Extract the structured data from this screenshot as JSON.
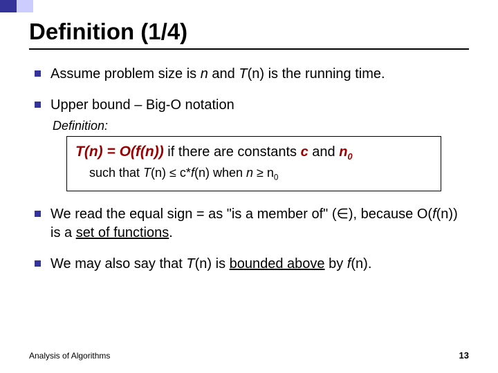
{
  "accent": {
    "dark": "#333399",
    "light": "#ccccff"
  },
  "title": "Definition (1/4)",
  "bullets": {
    "b1_pre": "Assume problem size is ",
    "b1_n": "n",
    "b1_mid": " and ",
    "b1_tn": "T",
    "b1_tn2": "(n)",
    "b1_post": " is the running time.",
    "b2": "Upper bound – Big-O notation",
    "b3_pre": "We read the equal sign = as \"is a member of\" (∈), because O(",
    "b3_fn": "f",
    "b3_fn2": "(n)",
    "b3_mid": ") is a ",
    "b3_under": "set of functions",
    "b3_post": ".",
    "b4_pre": "We may also say that ",
    "b4_tn": "T",
    "b4_tn2": "(n)",
    "b4_mid": " is ",
    "b4_under": "bounded above",
    "b4_mid2": " by ",
    "b4_fn": "f",
    "b4_fn2": "(n)",
    "b4_post": "."
  },
  "def_label": "Definition:",
  "def": {
    "formula": "T(n) = O(f(n))",
    "if_text": " if there are constants ",
    "c": "c",
    "and": " and ",
    "n0": "n",
    "n0_sub": "0",
    "line2_pre": "such that ",
    "line2_tn": "T",
    "line2_tn2": "(n)",
    "line2_mid": " ≤ c*",
    "line2_fn": "f",
    "line2_fn2": "(n)",
    "line2_when": " when ",
    "line2_n": "n ",
    "line2_ge": "≥ n",
    "line2_sub": "0"
  },
  "footer": {
    "left": "Analysis of Algorithms",
    "page": "13"
  }
}
